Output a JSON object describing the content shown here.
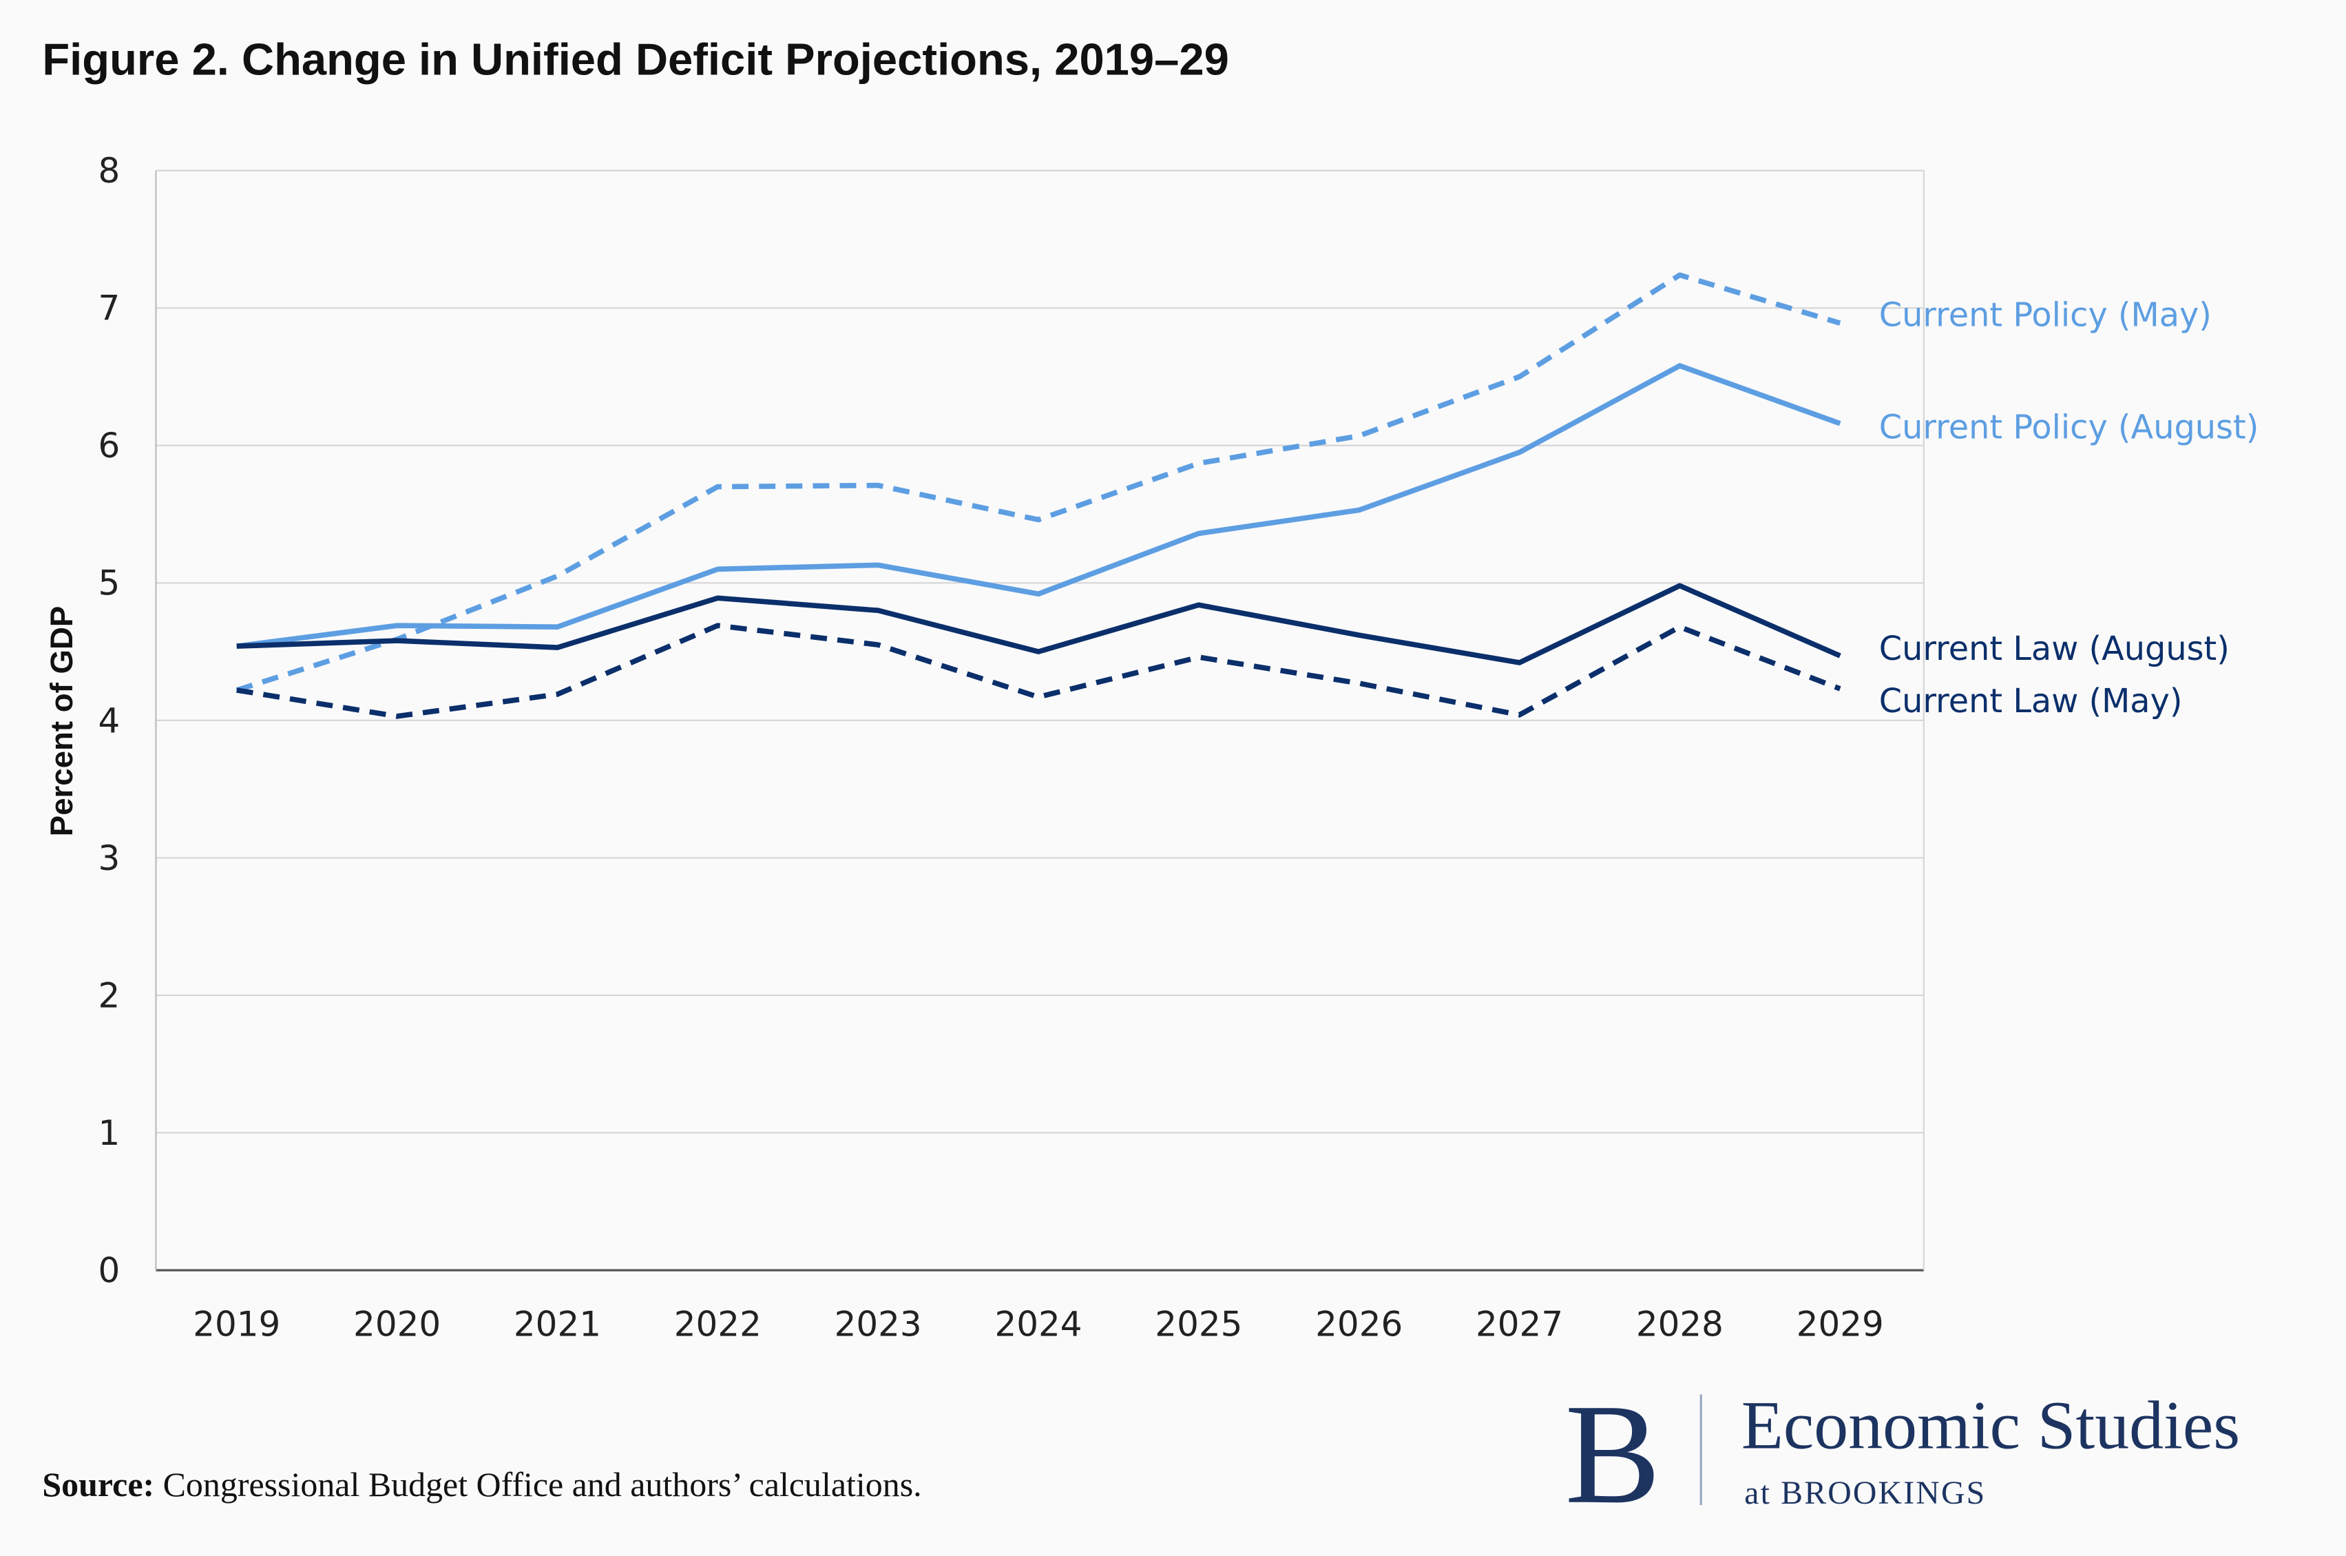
{
  "chart_data": {
    "type": "line",
    "title": "Figure 2. Change in Unified Deficit Projections, 2019–29",
    "xlabel": "",
    "ylabel": "Percent of GDP",
    "categories": [
      "2019",
      "2020",
      "2021",
      "2022",
      "2023",
      "2024",
      "2025",
      "2026",
      "2027",
      "2028",
      "2029"
    ],
    "ylim": [
      0,
      8
    ],
    "yticks": [
      "0",
      "1",
      "2",
      "3",
      "4",
      "5",
      "6",
      "7",
      "8"
    ],
    "grid": true,
    "legend": "direct labels at line ends (right)",
    "series": [
      {
        "name": "Current Policy (May)",
        "color": "#5d9ee2",
        "dash": true,
        "values": [
          4.22,
          4.59,
          5.05,
          5.7,
          5.71,
          5.46,
          5.87,
          6.07,
          6.5,
          7.24,
          6.89
        ]
      },
      {
        "name": "Current Policy (August)",
        "color": "#5d9ee2",
        "dash": false,
        "values": [
          4.54,
          4.69,
          4.68,
          5.1,
          5.13,
          4.92,
          5.36,
          5.53,
          5.95,
          6.58,
          6.16
        ]
      },
      {
        "name": "Current Law (August)",
        "color": "#0b2f6b",
        "dash": false,
        "values": [
          4.54,
          4.58,
          4.53,
          4.89,
          4.8,
          4.5,
          4.84,
          4.62,
          4.42,
          4.98,
          4.47
        ]
      },
      {
        "name": "Current Law (May)",
        "color": "#0b2f6b",
        "dash": true,
        "values": [
          4.22,
          4.03,
          4.19,
          4.69,
          4.55,
          4.17,
          4.46,
          4.27,
          4.04,
          4.68,
          4.23
        ]
      }
    ]
  },
  "source": {
    "label": "Source:",
    "text": " Congressional Budget Office and authors’ calculations."
  },
  "logo": {
    "mark": "B",
    "line1": "Economic Studies",
    "line2": "at BROOKINGS"
  }
}
